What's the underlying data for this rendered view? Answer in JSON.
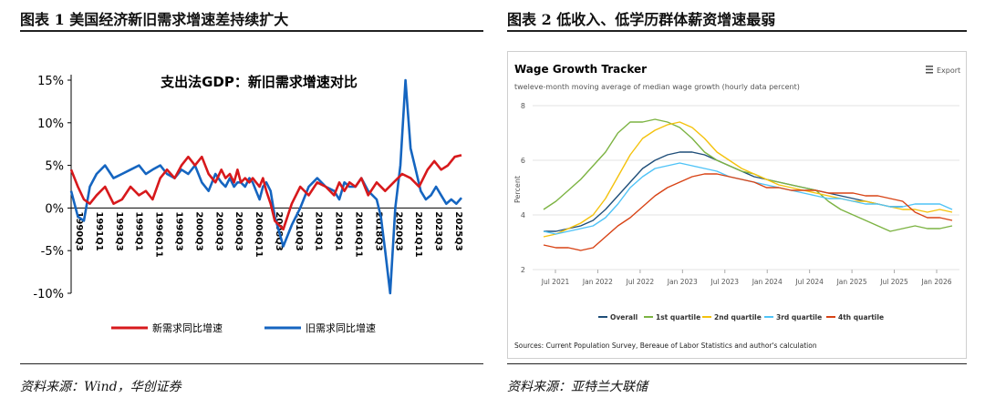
{
  "left": {
    "caption": "图表 1  美国经济新旧需求增速差持续扩大",
    "source": "资料来源：Wind，华创证券",
    "chart_data": {
      "type": "line",
      "title": "支出法GDP：新旧需求增速对比",
      "xlabel": "",
      "ylabel": "",
      "ylim": [
        -10,
        15
      ],
      "yticks": [
        "15%",
        "10%",
        "5%",
        "0%",
        "-5%",
        "-10%"
      ],
      "ytick_values": [
        15,
        10,
        5,
        0,
        -5,
        -10
      ],
      "xticks": [
        "1990Q3",
        "1991Q1",
        "1993Q3",
        "1995Q1",
        "1996Q11",
        "1998Q3",
        "2000Q3",
        "2003Q3",
        "2005Q3",
        "2006Q11",
        "2008Q3",
        "2010Q3",
        "2013Q1",
        "2015Q1",
        "2016Q11",
        "2018Q3",
        "2020Q3",
        "2021Q11",
        "2023Q3",
        "2025Q3"
      ],
      "grid": false,
      "legend": "bottom",
      "series": [
        {
          "name": "新需求同比增速",
          "color": "#d7191c",
          "x": [
            0.0,
            0.8,
            1.5,
            2.2,
            3.0,
            4.0,
            5.0,
            6.0,
            7.0,
            8.0,
            8.8,
            9.6,
            10.5,
            11.3,
            12.2,
            13.0,
            13.8,
            14.6,
            15.4,
            16.2,
            17.0,
            17.7,
            18.2,
            18.7,
            19.2,
            19.6,
            20.0,
            20.5,
            21.0,
            21.4,
            21.8,
            22.2,
            22.6,
            23.0,
            23.5,
            24.0,
            25.0,
            26.0,
            27.0,
            28.0,
            29.0,
            30.0,
            31.0,
            31.6,
            32.2,
            32.8,
            33.5,
            34.2,
            35.0,
            36.0,
            37.0,
            38.0,
            39.0,
            40.0,
            41.0,
            42.0,
            42.8,
            43.6,
            44.4,
            45.2,
            46.0
          ],
          "y": [
            4.5,
            2.5,
            1.0,
            0.5,
            1.5,
            2.5,
            0.5,
            1.0,
            2.5,
            1.5,
            2.0,
            1.0,
            3.5,
            4.5,
            3.5,
            5.0,
            6.0,
            5.0,
            6.0,
            4.0,
            3.0,
            4.5,
            3.5,
            4.0,
            3.0,
            4.5,
            3.0,
            3.5,
            3.0,
            3.5,
            3.0,
            2.5,
            3.5,
            2.0,
            0.5,
            -1.5,
            -2.5,
            0.5,
            2.5,
            1.5,
            3.0,
            2.5,
            1.5,
            3.0,
            2.0,
            3.0,
            2.5,
            3.5,
            1.5,
            3.0,
            2.0,
            3.0,
            4.0,
            3.5,
            2.5,
            4.5,
            5.5,
            4.5,
            5.0,
            6.0,
            6.2
          ]
        },
        {
          "name": "旧需求同比增速",
          "color": "#1565c0",
          "x": [
            0.0,
            0.8,
            1.5,
            2.2,
            3.0,
            4.0,
            5.0,
            6.0,
            7.0,
            8.0,
            8.8,
            9.6,
            10.5,
            11.3,
            12.2,
            13.0,
            13.8,
            14.6,
            15.4,
            16.2,
            17.0,
            17.7,
            18.2,
            18.7,
            19.2,
            19.6,
            20.0,
            20.5,
            21.0,
            21.4,
            21.8,
            22.2,
            22.6,
            23.0,
            23.5,
            24.0,
            25.0,
            26.0,
            27.0,
            28.0,
            29.0,
            30.0,
            31.0,
            31.6,
            32.2,
            32.8,
            33.5,
            34.2,
            35.0,
            36.0,
            36.5,
            37.0,
            37.6,
            38.2,
            38.8,
            39.4,
            40.0,
            40.6,
            41.2,
            41.8,
            42.4,
            43.0,
            43.6,
            44.2,
            44.8,
            45.4,
            46.0
          ],
          "y": [
            2.0,
            -1.0,
            -1.5,
            2.5,
            4.0,
            5.0,
            3.5,
            4.0,
            4.5,
            5.0,
            4.0,
            4.5,
            5.0,
            4.0,
            3.5,
            4.5,
            4.0,
            5.0,
            3.0,
            2.0,
            4.0,
            3.0,
            2.5,
            3.5,
            2.5,
            3.0,
            3.0,
            2.5,
            3.5,
            3.0,
            2.0,
            1.0,
            2.5,
            3.0,
            2.0,
            -1.0,
            -4.5,
            -2.0,
            0.0,
            2.5,
            3.5,
            2.5,
            2.0,
            1.0,
            3.0,
            2.5,
            2.5,
            3.5,
            2.0,
            1.0,
            -1.0,
            -5.0,
            -10.0,
            0.0,
            5.0,
            15.0,
            7.0,
            4.5,
            2.0,
            1.0,
            1.5,
            2.5,
            1.5,
            0.5,
            1.0,
            0.5,
            1.2
          ]
        }
      ]
    }
  },
  "right": {
    "caption": "图表 2  低收入、低学历群体薪资增速最弱",
    "source": "资料来源：亚特兰大联储",
    "export_label": "Export",
    "export_icon": "hamburger-menu-icon",
    "footnote": "Sources: Current Population Survey, Bereaue of Labor Statistics and author's calculation",
    "chart_data": {
      "type": "line",
      "title": "Wage Growth Tracker",
      "subtitle": "tweleve-month moving average of median wage growth (hourly data percent)",
      "xlabel": "",
      "ylabel": "Percent",
      "ylim": [
        2,
        8
      ],
      "yticks": [
        "8",
        "6",
        "4",
        "2"
      ],
      "ytick_values": [
        8,
        6,
        4,
        2
      ],
      "xticks": [
        "Jul 2021",
        "Jan 2022",
        "Jul 2022",
        "Jan 2023",
        "Jul 2023",
        "Jan 2024",
        "Jul 2024",
        "Jan 2025",
        "Jul 2025",
        "Jan 2026"
      ],
      "grid": true,
      "legend": "bottom",
      "series": [
        {
          "name": "Overall",
          "color": "#1f4e79",
          "x": [
            0,
            2,
            4,
            6,
            8,
            10,
            12,
            14,
            16,
            18,
            20,
            22,
            24,
            26,
            28,
            30,
            32,
            34,
            36,
            38,
            40,
            42,
            44,
            46,
            48,
            50,
            52,
            54,
            56,
            58
          ],
          "y": [
            3.4,
            3.4,
            3.5,
            3.6,
            3.8,
            4.2,
            4.7,
            5.2,
            5.7,
            6.0,
            6.2,
            6.3,
            6.3,
            6.2,
            6.0,
            5.8,
            5.6,
            5.4,
            5.3,
            5.2,
            5.1,
            5.0,
            4.9,
            4.8,
            4.7,
            4.6,
            4.5,
            4.4,
            4.3,
            4.3
          ]
        },
        {
          "name": "1st quartile",
          "color": "#7cb342",
          "x": [
            0,
            2,
            4,
            6,
            8,
            10,
            12,
            14,
            16,
            18,
            20,
            22,
            24,
            26,
            28,
            30,
            32,
            34,
            36,
            38,
            40,
            42,
            44,
            46,
            48,
            50,
            52,
            54,
            56,
            58,
            60,
            62,
            64,
            66
          ],
          "y": [
            4.2,
            4.5,
            4.9,
            5.3,
            5.8,
            6.3,
            7.0,
            7.4,
            7.4,
            7.5,
            7.4,
            7.2,
            6.8,
            6.3,
            6.0,
            5.8,
            5.6,
            5.5,
            5.3,
            5.2,
            5.1,
            5.0,
            4.9,
            4.5,
            4.2,
            4.0,
            3.8,
            3.6,
            3.4,
            3.5,
            3.6,
            3.5,
            3.5,
            3.6
          ]
        },
        {
          "name": "2nd quartile",
          "color": "#f4c20d",
          "x": [
            0,
            2,
            4,
            6,
            8,
            10,
            12,
            14,
            16,
            18,
            20,
            22,
            24,
            26,
            28,
            30,
            32,
            34,
            36,
            38,
            40,
            42,
            44,
            46,
            48,
            50,
            52,
            54,
            56,
            58,
            60,
            62,
            64,
            66
          ],
          "y": [
            3.2,
            3.3,
            3.5,
            3.7,
            4.0,
            4.6,
            5.4,
            6.2,
            6.8,
            7.1,
            7.3,
            7.4,
            7.2,
            6.8,
            6.3,
            6.0,
            5.7,
            5.5,
            5.3,
            5.1,
            5.0,
            4.9,
            4.8,
            4.7,
            4.6,
            4.5,
            4.5,
            4.4,
            4.3,
            4.2,
            4.2,
            4.1,
            4.2,
            4.1
          ]
        },
        {
          "name": "3rd quartile",
          "color": "#4fc3f7",
          "x": [
            0,
            2,
            4,
            6,
            8,
            10,
            12,
            14,
            16,
            18,
            20,
            22,
            24,
            26,
            28,
            30,
            32,
            34,
            36,
            38,
            40,
            42,
            44,
            46,
            48,
            50,
            52,
            54,
            56,
            58,
            60,
            62,
            64,
            66
          ],
          "y": [
            3.4,
            3.3,
            3.4,
            3.5,
            3.6,
            3.9,
            4.4,
            5.0,
            5.4,
            5.7,
            5.8,
            5.9,
            5.8,
            5.7,
            5.6,
            5.4,
            5.3,
            5.2,
            5.1,
            5.0,
            4.9,
            4.8,
            4.7,
            4.6,
            4.6,
            4.5,
            4.4,
            4.4,
            4.3,
            4.3,
            4.4,
            4.4,
            4.4,
            4.2
          ]
        },
        {
          "name": "4th quartile",
          "color": "#d84315",
          "x": [
            0,
            2,
            4,
            6,
            8,
            10,
            12,
            14,
            16,
            18,
            20,
            22,
            24,
            26,
            28,
            30,
            32,
            34,
            36,
            38,
            40,
            42,
            44,
            46,
            48,
            50,
            52,
            54,
            56,
            58,
            60,
            62,
            64,
            66
          ],
          "y": [
            2.9,
            2.8,
            2.8,
            2.7,
            2.8,
            3.2,
            3.6,
            3.9,
            4.3,
            4.7,
            5.0,
            5.2,
            5.4,
            5.5,
            5.5,
            5.4,
            5.3,
            5.2,
            5.0,
            5.0,
            4.9,
            4.9,
            4.9,
            4.8,
            4.8,
            4.8,
            4.7,
            4.7,
            4.6,
            4.5,
            4.1,
            3.9,
            3.9,
            3.8
          ]
        }
      ]
    }
  }
}
